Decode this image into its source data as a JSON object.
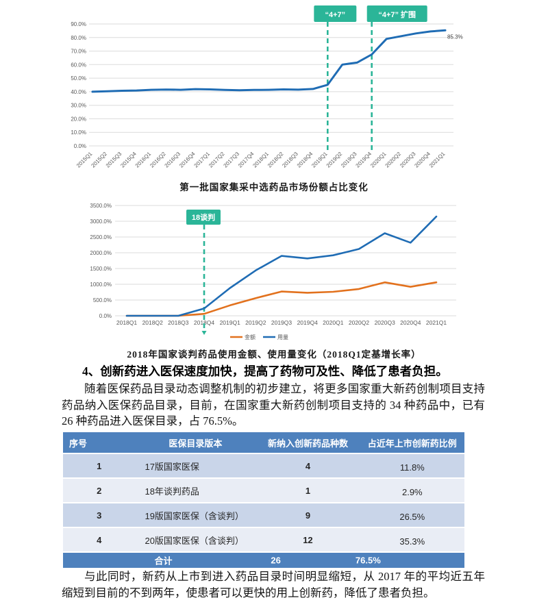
{
  "colors": {
    "line_blue": "#1F6CB4",
    "line_orange": "#E2711D",
    "teal": "#2BB598",
    "table_header_blue": "#4E81BD",
    "row_dark": "#C9D5E9",
    "row_light": "#E9EDF5",
    "grid_gray": "#DBDBDB",
    "axis_text": "#595959"
  },
  "chart_data": [
    {
      "type": "line",
      "title": "第一批国家集采中选药品市场份额占比变化",
      "categories": [
        "2015Q1",
        "2015Q2",
        "2015Q3",
        "2015Q4",
        "2016Q1",
        "2016Q2",
        "2016Q3",
        "2016Q4",
        "2017Q1",
        "2017Q2",
        "2017Q3",
        "2017Q4",
        "2018Q1",
        "2018Q2",
        "2018Q3",
        "2018Q4",
        "2019Q1",
        "2019Q2",
        "2019Q3",
        "2019Q4",
        "2020Q1",
        "2020Q2",
        "2020Q3",
        "2020Q4",
        "2021Q1"
      ],
      "series": [
        {
          "name": "中选药品市场份额",
          "color": "#1F6CB4",
          "values": [
            40.0,
            40.3,
            40.7,
            40.9,
            41.4,
            41.6,
            41.4,
            41.9,
            41.7,
            41.3,
            41.1,
            41.3,
            41.4,
            41.7,
            41.5,
            42.0,
            45.1,
            60.0,
            61.5,
            67.5,
            79.0,
            81.0,
            83.0,
            84.5,
            85.3
          ]
        }
      ],
      "ylim": [
        0,
        90
      ],
      "ytick_step": 10,
      "ytick_labels": [
        "0.0%",
        "10.0%",
        "20.0%",
        "30.0%",
        "40.0%",
        "50.0%",
        "60.0%",
        "70.0%",
        "80.0%",
        "90.0%"
      ],
      "end_label": "85.3%",
      "annotations": [
        {
          "label": "“4+7”",
          "at": "2019Q1"
        },
        {
          "label": "“4+7” 扩围",
          "at": "2019Q4"
        }
      ],
      "legend": "none",
      "grid": "horizontal"
    },
    {
      "type": "line",
      "title": "2018年国家谈判药品使用金额、使用量变化（2018Q1定基增长率）",
      "categories": [
        "2018Q1",
        "2018Q2",
        "2018Q3",
        "2018Q4",
        "2019Q1",
        "2019Q2",
        "2019Q3",
        "2019Q4",
        "2020Q1",
        "2020Q2",
        "2020Q3",
        "2020Q4",
        "2021Q1"
      ],
      "series": [
        {
          "name": "金额",
          "color": "#E2711D",
          "values": [
            0,
            0,
            0,
            60,
            330,
            560,
            770,
            730,
            760,
            850,
            1060,
            920,
            1060
          ]
        },
        {
          "name": "用量",
          "color": "#1F6CB4",
          "values": [
            0,
            0,
            0,
            230,
            880,
            1440,
            1900,
            1820,
            1920,
            2120,
            2620,
            2320,
            3150
          ]
        }
      ],
      "ylim": [
        0,
        3500
      ],
      "ytick_step": 500,
      "ytick_labels": [
        "0.0%",
        "500.0%",
        "1000.0%",
        "1500.0%",
        "2000.0%",
        "2500.0%",
        "3000.0%",
        "3500.0%"
      ],
      "annotations": [
        {
          "label": "18谈判",
          "at": "2018Q4"
        }
      ],
      "legend_position": "bottom",
      "grid": "horizontal"
    }
  ],
  "captions": {
    "chart1": "第一批国家集采中选药品市场份额占比变化",
    "chart2": "2018年国家谈判药品使用金额、使用量变化（2018Q1定基增长率）"
  },
  "heading": {
    "text": "4、创新药进入医保速度加快，提高了药物可及性、降低了患者负担。"
  },
  "paragraphs": {
    "p1": "随着医保药品目录动态调整机制的初步建立，将更多国家重大新药创制项目支持药品纳入医保药品目录，目前，在国家重大新药创制项目支持的 34 种药品中，已有 26 种药品进入医保目录，占 76.5%。",
    "p2": "与此同时，新药从上市到进入药品目录时间明显缩短，从 2017 年的平均近五年缩短到目前的不到两年，使患者可以更快的用上创新药，降低了患者负担。"
  },
  "table": {
    "columns": [
      "序号",
      "医保目录版本",
      "新纳入创新药品种数",
      "占近年上市创新药比例"
    ],
    "rows": [
      {
        "no": "1",
        "version": "17版国家医保",
        "count": "4",
        "ratio": "11.8%"
      },
      {
        "no": "2",
        "version": "18年谈判药品",
        "count": "1",
        "ratio": "2.9%"
      },
      {
        "no": "3",
        "version": "19版国家医保（含谈判）",
        "count": "9",
        "ratio": "26.5%"
      },
      {
        "no": "4",
        "version": "20版国家医保（含谈判）",
        "count": "12",
        "ratio": "35.3%"
      }
    ],
    "total": {
      "label": "合计",
      "count": "26",
      "ratio": "76.5%"
    }
  }
}
